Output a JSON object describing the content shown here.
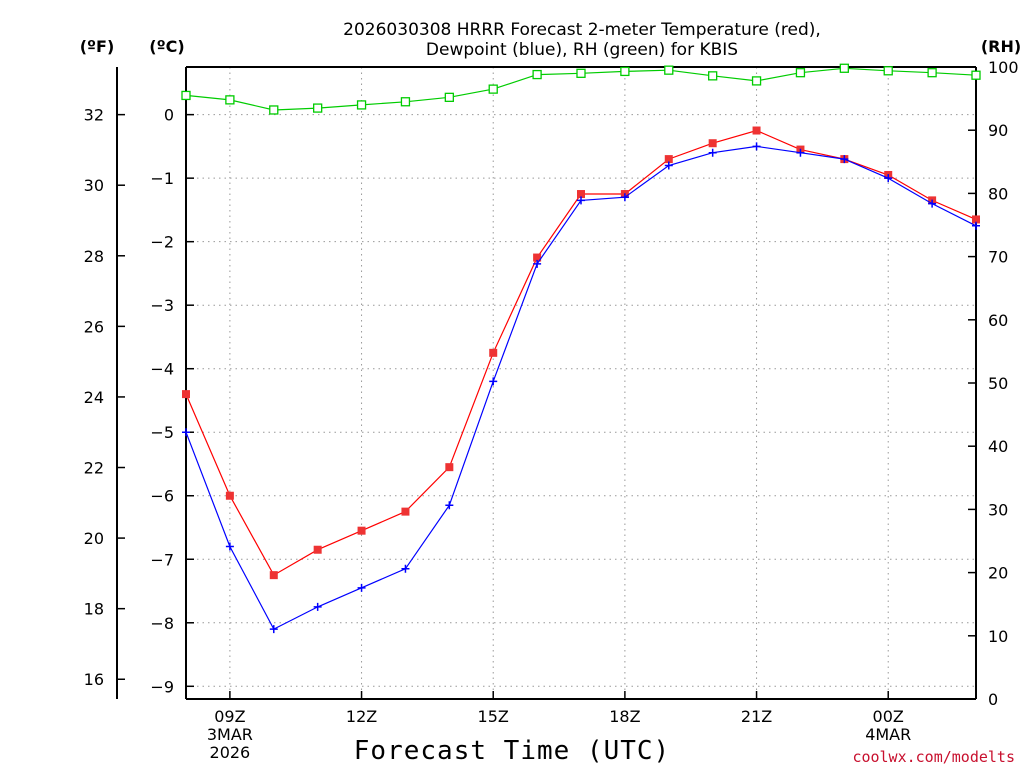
{
  "colors": {
    "temperature": "#ff0000",
    "dewpoint": "#0000ff",
    "rh": "#00cc00",
    "grid": "#999999",
    "axis": "#000000",
    "credit": "#c8102e"
  },
  "chart_data": {
    "type": "line",
    "title_line1": "2026030308 HRRR Forecast 2-meter Temperature (red),",
    "title_line2": "Dewpoint (blue), RH (green) for KBIS",
    "xlabel": "Forecast Time (UTC)",
    "credit": "coolwx.com/modelts",
    "units": {
      "fahrenheit": "(ºF)",
      "celsius": "(ºC)",
      "rh": "(RH)"
    },
    "x_hours": [
      8,
      9,
      10,
      11,
      12,
      13,
      14,
      15,
      16,
      17,
      18,
      19,
      20,
      21,
      22,
      23,
      24,
      25,
      26
    ],
    "xlim": [
      8,
      26
    ],
    "x_ticks": [
      {
        "hour": 9,
        "lines": [
          "09Z",
          "3MAR",
          "2026"
        ]
      },
      {
        "hour": 12,
        "lines": [
          "12Z"
        ]
      },
      {
        "hour": 15,
        "lines": [
          "15Z"
        ]
      },
      {
        "hour": 18,
        "lines": [
          "18Z"
        ]
      },
      {
        "hour": 21,
        "lines": [
          "21Z"
        ]
      },
      {
        "hour": 24,
        "lines": [
          "00Z",
          "4MAR"
        ]
      }
    ],
    "celsius_axis": {
      "lim": [
        -9.2,
        0.75
      ],
      "ticks": [
        0,
        -1,
        -2,
        -3,
        -4,
        -5,
        -6,
        -7,
        -8,
        -9
      ],
      "labels": [
        "0",
        "−1",
        "−2",
        "−3",
        "−4",
        "−5",
        "−6",
        "−7",
        "−8",
        "−9"
      ]
    },
    "fahrenheit_axis": {
      "ticks": [
        32,
        30,
        28,
        26,
        24,
        22,
        20,
        18,
        16
      ],
      "labels": [
        "32",
        "30",
        "28",
        "26",
        "24",
        "22",
        "20",
        "18",
        "16"
      ]
    },
    "rh_axis": {
      "lim": [
        0,
        100
      ],
      "ticks": [
        0,
        10,
        20,
        30,
        40,
        50,
        60,
        70,
        80,
        90,
        100
      ],
      "labels": [
        "0",
        "10",
        "20",
        "30",
        "40",
        "50",
        "60",
        "70",
        "80",
        "90",
        "100"
      ]
    },
    "series": [
      {
        "name": "Temperature",
        "units": "C",
        "values": [
          -4.4,
          -6.0,
          -7.25,
          -6.85,
          -6.55,
          -6.25,
          -5.55,
          -3.75,
          -2.25,
          -1.25,
          -1.25,
          -0.7,
          -0.45,
          -0.25,
          -0.55,
          -0.7,
          -0.95,
          -1.35,
          -1.65
        ]
      },
      {
        "name": "Dewpoint",
        "units": "C",
        "values": [
          -5.0,
          -6.8,
          -8.1,
          -7.75,
          -7.45,
          -7.15,
          -6.15,
          -4.2,
          -2.35,
          -1.35,
          -1.3,
          -0.8,
          -0.6,
          -0.5,
          -0.6,
          -0.7,
          -1.0,
          -1.4,
          -1.75
        ]
      },
      {
        "name": "RH",
        "units": "%",
        "values": [
          95.5,
          94.8,
          93.2,
          93.5,
          94.0,
          94.5,
          95.2,
          96.5,
          98.8,
          99.0,
          99.3,
          99.5,
          98.6,
          97.8,
          99.1,
          99.8,
          99.4,
          99.1,
          98.7
        ]
      }
    ]
  }
}
